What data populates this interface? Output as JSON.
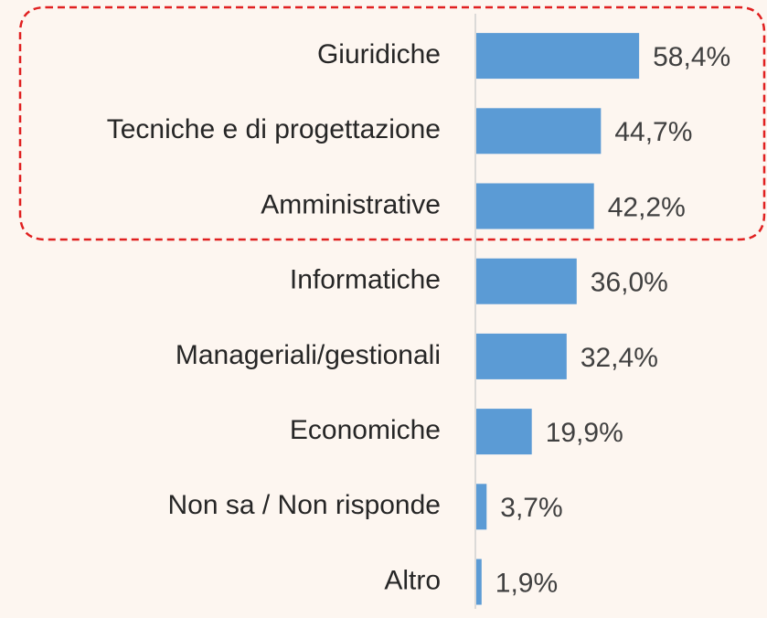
{
  "chart_data": {
    "type": "bar",
    "orientation": "horizontal",
    "categories": [
      "Giuridiche",
      "Tecniche e di progettazione",
      "Amministrative",
      "Informatiche",
      "Manageriali/gestionali",
      "Economiche",
      "Non sa / Non risponde",
      "Altro"
    ],
    "values": [
      58.4,
      44.7,
      42.2,
      36.0,
      32.4,
      19.9,
      3.7,
      1.9
    ],
    "value_labels": [
      "58,4%",
      "44,7%",
      "42,2%",
      "36,0%",
      "32,4%",
      "19,9%",
      "3,7%",
      "1,9%"
    ],
    "color": "#5b9bd5"
  }
}
